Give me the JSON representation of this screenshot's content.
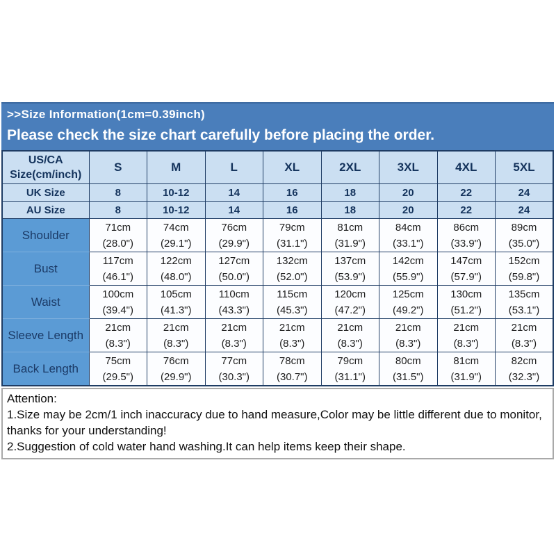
{
  "title": {
    "line1": ">>Size Information(1cm=0.39inch)",
    "line2": "Please check the size chart carefully before placing the order."
  },
  "table": {
    "corner": {
      "line1": "US/CA",
      "line2": "Size(cm/inch)"
    },
    "size_columns": [
      "S",
      "M",
      "L",
      "XL",
      "2XL",
      "3XL",
      "4XL",
      "5XL"
    ],
    "size_rows": [
      {
        "label": "UK Size",
        "values": [
          "8",
          "10-12",
          "14",
          "16",
          "18",
          "20",
          "22",
          "24"
        ]
      },
      {
        "label": "AU Size",
        "values": [
          "8",
          "10-12",
          "14",
          "16",
          "18",
          "20",
          "22",
          "24"
        ]
      }
    ],
    "measurement_rows": [
      {
        "label": "Shoulder",
        "cm": [
          "71cm",
          "74cm",
          "76cm",
          "79cm",
          "81cm",
          "84cm",
          "86cm",
          "89cm"
        ],
        "inch": [
          "(28.0\")",
          "(29.1\")",
          "(29.9\")",
          "(31.1\")",
          "(31.9\")",
          "(33.1\")",
          "(33.9\")",
          "(35.0\")"
        ]
      },
      {
        "label": "Bust",
        "cm": [
          "117cm",
          "122cm",
          "127cm",
          "132cm",
          "137cm",
          "142cm",
          "147cm",
          "152cm"
        ],
        "inch": [
          "(46.1\")",
          "(48.0\")",
          "(50.0\")",
          "(52.0\")",
          "(53.9\")",
          "(55.9\")",
          "(57.9\")",
          "(59.8\")"
        ]
      },
      {
        "label": "Waist",
        "cm": [
          "100cm",
          "105cm",
          "110cm",
          "115cm",
          "120cm",
          "125cm",
          "130cm",
          "135cm"
        ],
        "inch": [
          "(39.4\")",
          "(41.3\")",
          "(43.3\")",
          "(45.3\")",
          "(47.2\")",
          "(49.2\")",
          "(51.2\")",
          "(53.1\")"
        ]
      },
      {
        "label": "Sleeve Length",
        "cm": [
          "21cm",
          "21cm",
          "21cm",
          "21cm",
          "21cm",
          "21cm",
          "21cm",
          "21cm"
        ],
        "inch": [
          "(8.3\")",
          "(8.3\")",
          "(8.3\")",
          "(8.3\")",
          "(8.3\")",
          "(8.3\")",
          "(8.3\")",
          "(8.3\")"
        ]
      },
      {
        "label": "Back Length",
        "cm": [
          "75cm",
          "76cm",
          "77cm",
          "78cm",
          "79cm",
          "80cm",
          "81cm",
          "82cm"
        ],
        "inch": [
          "(29.5\")",
          "(29.9\")",
          "(30.3\")",
          "(30.7\")",
          "(31.1\")",
          "(31.5\")",
          "(31.9\")",
          "(32.3\")"
        ]
      }
    ]
  },
  "attention": {
    "heading": "Attention:",
    "note1": "1.Size may be 2cm/1 inch inaccuracy due to hand measure,Color may be little different due to monitor, thanks for your understanding!",
    "note2": "2.Suggestion of cold water hand washing.It can help items keep their shape."
  },
  "colors": {
    "title_band": "#4a7ebb",
    "header_cell": "#cbdff2",
    "label_cell": "#5b9bd5",
    "header_text": "#14335c",
    "grid_border": "#1e3c64",
    "attention_border": "#a9a9a9"
  }
}
